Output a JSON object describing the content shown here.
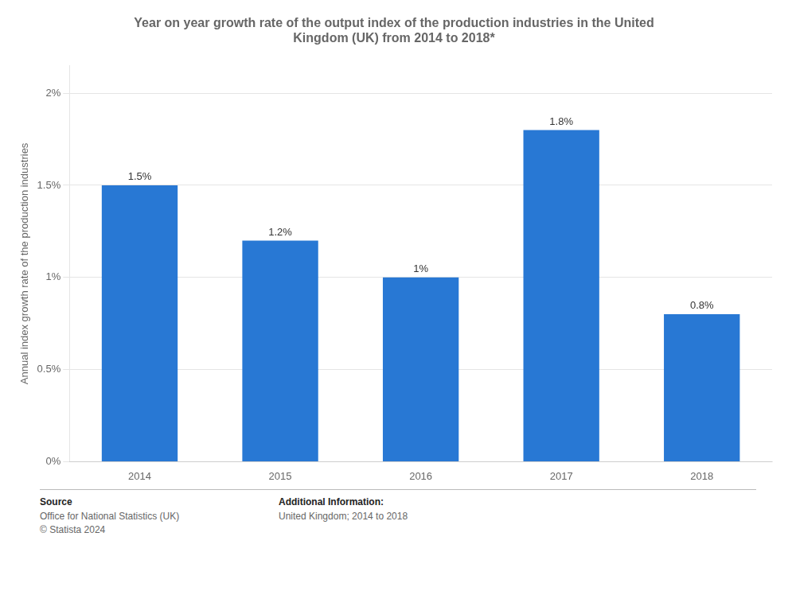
{
  "chart_data": {
    "type": "bar",
    "title": "Year on year growth rate of the output index of the production industries in the United\nKingdom (UK) from 2014 to 2018*",
    "categories": [
      "2014",
      "2015",
      "2016",
      "2017",
      "2018"
    ],
    "values": [
      1.5,
      1.2,
      1.0,
      1.8,
      0.8
    ],
    "value_labels": [
      "1.5%",
      "1.2%",
      "1%",
      "1.8%",
      "0.8%"
    ],
    "color": "#2878D4",
    "ylabel": "Annual index growth rate of the production industries",
    "ylim": [
      0,
      2.15
    ],
    "yticks": [
      {
        "value": 0.0,
        "label": "0%"
      },
      {
        "value": 0.5,
        "label": "0.5%"
      },
      {
        "value": 1.0,
        "label": "1%"
      },
      {
        "value": 1.5,
        "label": "1.5%"
      },
      {
        "value": 2.0,
        "label": "2%"
      }
    ],
    "grid": true,
    "annotations": [
      "Source",
      "Office for National Statistics (UK)\n© Statista 2024",
      "Additional Information:",
      "United Kingdom; 2014 to 2018"
    ]
  }
}
